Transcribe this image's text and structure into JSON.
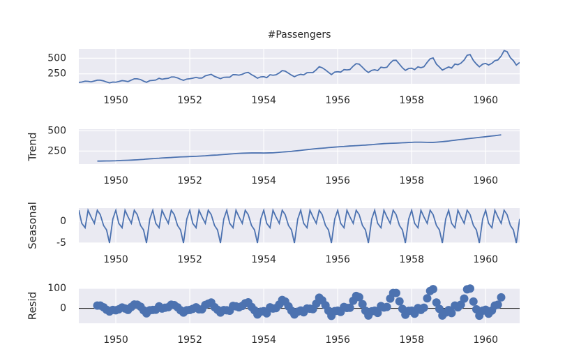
{
  "chart_data": [
    {
      "type": "line",
      "title": "#Passengers",
      "color": "#4c72b0",
      "grid": true,
      "xlim": [
        1949,
        1960.92
      ],
      "xticks": [
        1950,
        1952,
        1954,
        1956,
        1958,
        1960
      ],
      "ylim": [
        90,
        650
      ],
      "yticks": [
        250,
        500
      ],
      "x": [
        1949,
        1949.08,
        1949.17,
        1949.25,
        1949.33,
        1949.42,
        1949.5,
        1949.58,
        1949.67,
        1949.75,
        1949.83,
        1949.92,
        1950,
        1950.08,
        1950.17,
        1950.25,
        1950.33,
        1950.42,
        1950.5,
        1950.58,
        1950.67,
        1950.75,
        1950.83,
        1950.92,
        1951,
        1951.08,
        1951.17,
        1951.25,
        1951.33,
        1951.42,
        1951.5,
        1951.58,
        1951.67,
        1951.75,
        1951.83,
        1951.92,
        1952,
        1952.08,
        1952.17,
        1952.25,
        1952.33,
        1952.42,
        1952.5,
        1952.58,
        1952.67,
        1952.75,
        1952.83,
        1952.92,
        1953,
        1953.08,
        1953.17,
        1953.25,
        1953.33,
        1953.42,
        1953.5,
        1953.58,
        1953.67,
        1953.75,
        1953.83,
        1953.92,
        1954,
        1954.08,
        1954.17,
        1954.25,
        1954.33,
        1954.42,
        1954.5,
        1954.58,
        1954.67,
        1954.75,
        1954.83,
        1954.92,
        1955,
        1955.08,
        1955.17,
        1955.25,
        1955.33,
        1955.42,
        1955.5,
        1955.58,
        1955.67,
        1955.75,
        1955.83,
        1955.92,
        1956,
        1956.08,
        1956.17,
        1956.25,
        1956.33,
        1956.42,
        1956.5,
        1956.58,
        1956.67,
        1956.75,
        1956.83,
        1956.92,
        1957,
        1957.08,
        1957.17,
        1957.25,
        1957.33,
        1957.42,
        1957.5,
        1957.58,
        1957.67,
        1957.75,
        1957.83,
        1957.92,
        1958,
        1958.08,
        1958.17,
        1958.25,
        1958.33,
        1958.42,
        1958.5,
        1958.58,
        1958.67,
        1958.75,
        1958.83,
        1958.92,
        1959,
        1959.08,
        1959.17,
        1959.25,
        1959.33,
        1959.42,
        1959.5,
        1959.58,
        1959.67,
        1959.75,
        1959.83,
        1959.92,
        1960,
        1960.08,
        1960.17,
        1960.25,
        1960.33,
        1960.42,
        1960.5,
        1960.58,
        1960.67,
        1960.75,
        1960.83,
        1960.92
      ],
      "values": [
        112,
        118,
        132,
        129,
        121,
        135,
        148,
        148,
        136,
        119,
        104,
        118,
        115,
        126,
        141,
        135,
        125,
        149,
        170,
        170,
        158,
        133,
        114,
        140,
        145,
        150,
        178,
        163,
        172,
        178,
        199,
        199,
        184,
        162,
        146,
        166,
        171,
        180,
        193,
        181,
        183,
        218,
        230,
        242,
        209,
        191,
        172,
        194,
        196,
        196,
        236,
        235,
        229,
        243,
        264,
        272,
        237,
        211,
        180,
        201,
        204,
        188,
        235,
        227,
        234,
        264,
        302,
        293,
        259,
        229,
        203,
        229,
        242,
        233,
        267,
        269,
        270,
        315,
        364,
        347,
        312,
        274,
        237,
        278,
        284,
        277,
        317,
        313,
        318,
        374,
        413,
        405,
        355,
        306,
        271,
        306,
        315,
        301,
        356,
        348,
        355,
        422,
        465,
        467,
        404,
        347,
        305,
        336,
        340,
        318,
        362,
        348,
        363,
        435,
        491,
        505,
        404,
        359,
        310,
        337,
        360,
        342,
        406,
        396,
        420,
        472,
        548,
        559,
        463,
        407,
        362,
        405,
        417,
        391,
        419,
        461,
        472,
        535,
        622,
        606,
        508,
        461,
        390,
        432
      ]
    },
    {
      "type": "line",
      "ylabel": "Trend",
      "color": "#4c72b0",
      "grid": true,
      "xlim": [
        1949,
        1960.92
      ],
      "xticks": [
        1950,
        1952,
        1954,
        1956,
        1958,
        1960
      ],
      "ylim": [
        90,
        520
      ],
      "yticks": [
        250,
        500
      ],
      "x": [
        1949,
        1949.08,
        1949.17,
        1949.25,
        1949.33,
        1949.42,
        1949.5,
        1949.58,
        1949.67,
        1949.75,
        1949.83,
        1949.92,
        1950,
        1950.08,
        1950.17,
        1950.25,
        1950.33,
        1950.42,
        1950.5,
        1950.58,
        1950.67,
        1950.75,
        1950.83,
        1950.92,
        1951,
        1951.08,
        1951.17,
        1951.25,
        1951.33,
        1951.42,
        1951.5,
        1951.58,
        1951.67,
        1951.75,
        1951.83,
        1951.92,
        1952,
        1952.08,
        1952.17,
        1952.25,
        1952.33,
        1952.42,
        1952.5,
        1952.58,
        1952.67,
        1952.75,
        1952.83,
        1952.92,
        1953,
        1953.08,
        1953.17,
        1953.25,
        1953.33,
        1953.42,
        1953.5,
        1953.58,
        1953.67,
        1953.75,
        1953.83,
        1953.92,
        1954,
        1954.08,
        1954.17,
        1954.25,
        1954.33,
        1954.42,
        1954.5,
        1954.58,
        1954.67,
        1954.75,
        1954.83,
        1954.92,
        1955,
        1955.08,
        1955.17,
        1955.25,
        1955.33,
        1955.42,
        1955.5,
        1955.58,
        1955.67,
        1955.75,
        1955.83,
        1955.92,
        1956,
        1956.08,
        1956.17,
        1956.25,
        1956.33,
        1956.42,
        1956.5,
        1956.58,
        1956.67,
        1956.75,
        1956.83,
        1956.92,
        1957,
        1957.08,
        1957.17,
        1957.25,
        1957.33,
        1957.42,
        1957.5,
        1957.58,
        1957.67,
        1957.75,
        1957.83,
        1957.92,
        1958,
        1958.08,
        1958.17,
        1958.25,
        1958.33,
        1958.42,
        1958.5,
        1958.58,
        1958.67,
        1958.75,
        1958.83,
        1958.92,
        1959,
        1959.08,
        1959.17,
        1959.25,
        1959.33,
        1959.42,
        1959.5,
        1959.58,
        1959.67,
        1959.75,
        1959.83,
        1959.92,
        1960,
        1960.08,
        1960.17,
        1960.25,
        1960.33,
        1960.42,
        1960.5,
        1960.58,
        1960.67,
        1960.75,
        1960.83,
        1960.92
      ],
      "values": [
        null,
        null,
        null,
        null,
        null,
        null,
        127,
        127,
        128,
        129,
        129,
        130,
        131,
        133,
        135,
        136,
        137,
        139,
        141,
        143,
        146,
        148,
        152,
        155,
        157,
        160,
        162,
        165,
        167,
        169,
        171,
        174,
        176,
        178,
        179,
        181,
        183,
        184,
        186,
        188,
        190,
        192,
        195,
        198,
        200,
        202,
        205,
        208,
        211,
        214,
        217,
        220,
        222,
        224,
        225,
        226,
        227,
        227,
        227,
        227,
        226,
        227,
        228,
        229,
        232,
        235,
        238,
        241,
        244,
        247,
        251,
        255,
        259,
        263,
        268,
        272,
        276,
        280,
        283,
        286,
        289,
        293,
        296,
        299,
        302,
        305,
        307,
        310,
        313,
        315,
        317,
        319,
        322,
        324,
        327,
        329,
        333,
        336,
        339,
        342,
        344,
        346,
        347,
        348,
        350,
        352,
        354,
        356,
        358,
        360,
        360,
        360,
        359,
        358,
        357,
        357,
        360,
        363,
        366,
        370,
        374,
        379,
        384,
        389,
        393,
        397,
        402,
        406,
        410,
        415,
        419,
        423,
        427,
        432,
        436,
        440,
        445,
        450,
        null,
        null,
        null,
        null,
        null,
        null
      ]
    },
    {
      "type": "line",
      "ylabel": "Seasonal",
      "color": "#4c72b0",
      "grid": true,
      "xlim": [
        1949,
        1960.92
      ],
      "xticks": [
        1950,
        1952,
        1954,
        1956,
        1958,
        1960
      ],
      "ylim": [
        -5,
        3
      ],
      "yticks": [
        -5,
        0
      ],
      "x": [
        1949,
        1949.08,
        1949.17,
        1949.25,
        1949.33,
        1949.42,
        1949.5,
        1949.58,
        1949.67,
        1949.75,
        1949.83,
        1949.92,
        1950,
        1950.08,
        1950.17,
        1950.25,
        1950.33,
        1950.42,
        1950.5,
        1950.58,
        1950.67,
        1950.75,
        1950.83,
        1950.92,
        1951,
        1951.08,
        1951.17,
        1951.25,
        1951.33,
        1951.42,
        1951.5,
        1951.58,
        1951.67,
        1951.75,
        1951.83,
        1951.92,
        1952,
        1952.08,
        1952.17,
        1952.25,
        1952.33,
        1952.42,
        1952.5,
        1952.58,
        1952.67,
        1952.75,
        1952.83,
        1952.92,
        1953,
        1953.08,
        1953.17,
        1953.25,
        1953.33,
        1953.42,
        1953.5,
        1953.58,
        1953.67,
        1953.75,
        1953.83,
        1953.92,
        1954,
        1954.08,
        1954.17,
        1954.25,
        1954.33,
        1954.42,
        1954.5,
        1954.58,
        1954.67,
        1954.75,
        1954.83,
        1954.92,
        1955,
        1955.08,
        1955.17,
        1955.25,
        1955.33,
        1955.42,
        1955.5,
        1955.58,
        1955.67,
        1955.75,
        1955.83,
        1955.92,
        1956,
        1956.08,
        1956.17,
        1956.25,
        1956.33,
        1956.42,
        1956.5,
        1956.58,
        1956.67,
        1956.75,
        1956.83,
        1956.92,
        1957,
        1957.08,
        1957.17,
        1957.25,
        1957.33,
        1957.42,
        1957.5,
        1957.58,
        1957.67,
        1957.75,
        1957.83,
        1957.92,
        1958,
        1958.08,
        1958.17,
        1958.25,
        1958.33,
        1958.42,
        1958.5,
        1958.58,
        1958.67,
        1958.75,
        1958.83,
        1958.92,
        1959,
        1959.08,
        1959.17,
        1959.25,
        1959.33,
        1959.42,
        1959.5,
        1959.58,
        1959.67,
        1959.75,
        1959.83,
        1959.92,
        1960,
        1960.08,
        1960.17,
        1960.25,
        1960.33,
        1960.42,
        1960.5,
        1960.58,
        1960.67,
        1960.75,
        1960.83,
        1960.92
      ],
      "values": [
        2.5,
        -0.5,
        -1.5,
        2.5,
        1,
        -0.5,
        2.5,
        1.5,
        -1,
        -2,
        -5,
        0.5,
        2.5,
        -0.5,
        -1.5,
        2.5,
        1,
        -0.5,
        2.5,
        1.5,
        -1,
        -2,
        -5,
        0.5,
        2.5,
        -0.5,
        -1.5,
        2.5,
        1,
        -0.5,
        2.5,
        1.5,
        -1,
        -2,
        -5,
        0.5,
        2.5,
        -0.5,
        -1.5,
        2.5,
        1,
        -0.5,
        2.5,
        1.5,
        -1,
        -2,
        -5,
        0.5,
        2.5,
        -0.5,
        -1.5,
        2.5,
        1,
        -0.5,
        2.5,
        1.5,
        -1,
        -2,
        -5,
        0.5,
        2.5,
        -0.5,
        -1.5,
        2.5,
        1,
        -0.5,
        2.5,
        1.5,
        -1,
        -2,
        -5,
        0.5,
        2.5,
        -0.5,
        -1.5,
        2.5,
        1,
        -0.5,
        2.5,
        1.5,
        -1,
        -2,
        -5,
        0.5,
        2.5,
        -0.5,
        -1.5,
        2.5,
        1,
        -0.5,
        2.5,
        1.5,
        -1,
        -2,
        -5,
        0.5,
        2.5,
        -0.5,
        -1.5,
        2.5,
        1,
        -0.5,
        2.5,
        1.5,
        -1,
        -2,
        -5,
        0.5,
        2.5,
        -0.5,
        -1.5,
        2.5,
        1,
        -0.5,
        2.5,
        1.5,
        -1,
        -2,
        -5,
        0.5,
        2.5,
        -0.5,
        -1.5,
        2.5,
        1,
        -0.5,
        2.5,
        1.5,
        -1,
        -2,
        -5,
        0.5,
        2.5,
        -0.5,
        -1.5,
        2.5,
        1,
        -0.5,
        2.5,
        1.5,
        -1,
        -2,
        -5,
        0.5
      ]
    },
    {
      "type": "scatter",
      "ylabel": "Resid",
      "color": "#4c72b0",
      "grid": true,
      "xlim": [
        1949,
        1960.92
      ],
      "xticks": [
        1950,
        1952,
        1954,
        1956,
        1958,
        1960
      ],
      "ylim": [
        -75,
        100
      ],
      "yticks": [
        0,
        100
      ],
      "x": [
        1949,
        1949.08,
        1949.17,
        1949.25,
        1949.33,
        1949.42,
        1949.5,
        1949.58,
        1949.67,
        1949.75,
        1949.83,
        1949.92,
        1950,
        1950.08,
        1950.17,
        1950.25,
        1950.33,
        1950.42,
        1950.5,
        1950.58,
        1950.67,
        1950.75,
        1950.83,
        1950.92,
        1951,
        1951.08,
        1951.17,
        1951.25,
        1951.33,
        1951.42,
        1951.5,
        1951.58,
        1951.67,
        1951.75,
        1951.83,
        1951.92,
        1952,
        1952.08,
        1952.17,
        1952.25,
        1952.33,
        1952.42,
        1952.5,
        1952.58,
        1952.67,
        1952.75,
        1952.83,
        1952.92,
        1953,
        1953.08,
        1953.17,
        1953.25,
        1953.33,
        1953.42,
        1953.5,
        1953.58,
        1953.67,
        1953.75,
        1953.83,
        1953.92,
        1954,
        1954.08,
        1954.17,
        1954.25,
        1954.33,
        1954.42,
        1954.5,
        1954.58,
        1954.67,
        1954.75,
        1954.83,
        1954.92,
        1955,
        1955.08,
        1955.17,
        1955.25,
        1955.33,
        1955.42,
        1955.5,
        1955.58,
        1955.67,
        1955.75,
        1955.83,
        1955.92,
        1956,
        1956.08,
        1956.17,
        1956.25,
        1956.33,
        1956.42,
        1956.5,
        1956.58,
        1956.67,
        1956.75,
        1956.83,
        1956.92,
        1957,
        1957.08,
        1957.17,
        1957.25,
        1957.33,
        1957.42,
        1957.5,
        1957.58,
        1957.67,
        1957.75,
        1957.83,
        1957.92,
        1958,
        1958.08,
        1958.17,
        1958.25,
        1958.33,
        1958.42,
        1958.5,
        1958.58,
        1958.67,
        1958.75,
        1958.83,
        1958.92,
        1959,
        1959.08,
        1959.17,
        1959.25,
        1959.33,
        1959.42,
        1959.5,
        1959.58,
        1959.67,
        1959.75,
        1959.83,
        1959.92,
        1960,
        1960.08,
        1960.17,
        1960.25,
        1960.33,
        1960.42,
        1960.5,
        1960.58,
        1960.67,
        1960.75,
        1960.83,
        1960.92
      ],
      "values": [
        null,
        null,
        null,
        null,
        null,
        null,
        14,
        14,
        5,
        -7,
        -16,
        -8,
        -10,
        -5,
        4,
        -1,
        -8,
        7,
        19,
        18,
        8,
        -10,
        -25,
        -10,
        -8,
        -7,
        10,
        -1,
        3,
        6,
        18,
        16,
        5,
        -10,
        -21,
        -10,
        -8,
        -3,
        5,
        -5,
        -5,
        17,
        23,
        29,
        6,
        -7,
        -21,
        -9,
        -10,
        -12,
        12,
        10,
        5,
        12,
        25,
        30,
        7,
        -10,
        -31,
        -17,
        -14,
        -25,
        5,
        -1,
        1,
        19,
        42,
        34,
        10,
        -12,
        -31,
        -17,
        -11,
        -20,
        -1,
        -2,
        -4,
        23,
        53,
        40,
        15,
        -12,
        -38,
        -14,
        -12,
        -18,
        7,
        2,
        3,
        38,
        62,
        56,
        21,
        -12,
        -36,
        -15,
        -12,
        -23,
        11,
        4,
        7,
        49,
        77,
        77,
        35,
        -3,
        -32,
        -13,
        -12,
        -27,
        1,
        -8,
        3,
        50,
        87,
        96,
        29,
        -3,
        -36,
        -21,
        -9,
        -24,
        14,
        5,
        18,
        49,
        95,
        99,
        34,
        -5,
        -37,
        -12,
        -7,
        -27,
        -11,
        14,
        18,
        55,
        null,
        null,
        null,
        null,
        null,
        null
      ]
    }
  ]
}
